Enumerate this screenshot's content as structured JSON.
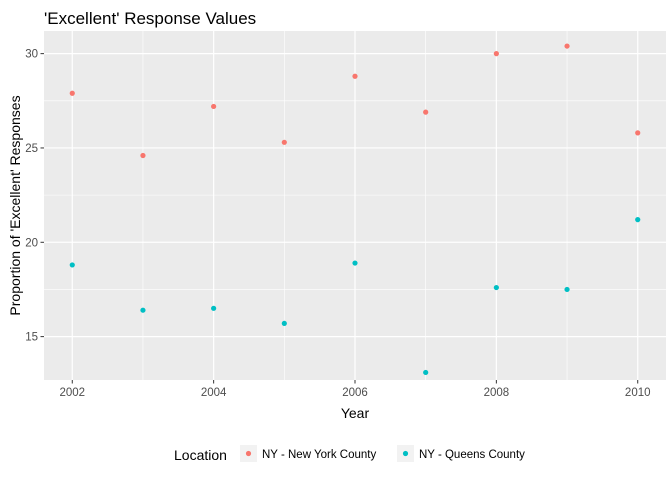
{
  "chart_data": {
    "type": "scatter",
    "title": "'Excellent' Response Values",
    "xlabel": "Year",
    "ylabel": "Proportion of 'Excellent' Responses",
    "xlim": [
      2001.6,
      2010.4
    ],
    "ylim": [
      12.7,
      31.2
    ],
    "x_ticks": [
      2002,
      2004,
      2006,
      2008,
      2010
    ],
    "y_ticks": [
      15,
      20,
      25,
      30
    ],
    "grid": true,
    "legend": {
      "title": "Location",
      "position": "bottom"
    },
    "series": [
      {
        "name": "NY - New York County",
        "color": "#F8766D",
        "points": [
          {
            "x": 2002,
            "y": 27.9
          },
          {
            "x": 2003,
            "y": 24.6
          },
          {
            "x": 2004,
            "y": 27.2
          },
          {
            "x": 2005,
            "y": 25.3
          },
          {
            "x": 2006,
            "y": 28.8
          },
          {
            "x": 2007,
            "y": 26.9
          },
          {
            "x": 2008,
            "y": 30.0
          },
          {
            "x": 2009,
            "y": 30.4
          },
          {
            "x": 2010,
            "y": 25.8
          }
        ]
      },
      {
        "name": "NY - Queens County",
        "color": "#00BFC4",
        "points": [
          {
            "x": 2002,
            "y": 18.8
          },
          {
            "x": 2003,
            "y": 16.4
          },
          {
            "x": 2004,
            "y": 16.5
          },
          {
            "x": 2005,
            "y": 15.7
          },
          {
            "x": 2006,
            "y": 18.9
          },
          {
            "x": 2007,
            "y": 13.1
          },
          {
            "x": 2008,
            "y": 17.6
          },
          {
            "x": 2009,
            "y": 17.5
          },
          {
            "x": 2010,
            "y": 21.2
          }
        ]
      }
    ]
  }
}
